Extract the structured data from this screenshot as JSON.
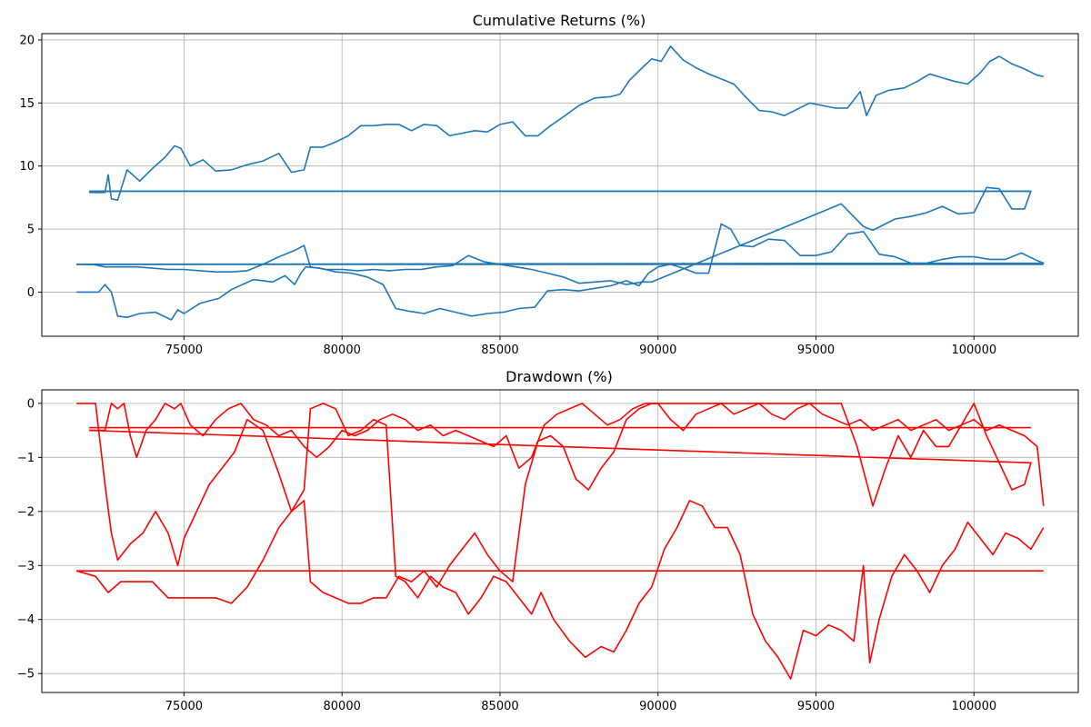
{
  "chart_data": [
    {
      "type": "line",
      "title": "Cumulative Returns (%)",
      "xlabel": "",
      "ylabel": "",
      "xlim": [
        70500,
        103300
      ],
      "ylim": [
        -3.5,
        20.5
      ],
      "xticks": [
        75000,
        80000,
        85000,
        90000,
        95000,
        100000
      ],
      "xtick_labels": [
        "75000",
        "80000",
        "85000",
        "90000",
        "95000",
        "100000"
      ],
      "yticks": [
        0,
        5,
        10,
        15,
        20
      ],
      "ytick_labels": [
        "0",
        "5",
        "10",
        "15",
        "20"
      ],
      "grid": true,
      "color": "#1f77b4",
      "series": [
        {
          "x": [
            71600,
            72300,
            72500,
            72700,
            72900,
            73200,
            73600,
            74100,
            74600,
            74800,
            75000,
            75500,
            76100,
            76500,
            77200,
            77800,
            78200,
            78500,
            78700,
            78850,
            79300,
            79800,
            80300,
            80800,
            81300,
            81700,
            82100,
            82600,
            83100,
            83600,
            84100,
            84600,
            85100,
            85600,
            86100,
            86500,
            87000,
            87500,
            88000,
            88500,
            89000,
            89400,
            89700,
            90000,
            90400,
            90800,
            91200,
            91600,
            92000,
            92300,
            92600,
            93000,
            93500,
            94000,
            94500,
            95000,
            95500,
            96000,
            96500,
            97000,
            97500,
            98000,
            98500,
            99000,
            99500,
            100000,
            100500,
            101000,
            101500,
            102000,
            102200,
            71600
          ],
          "y": [
            0.0,
            0.0,
            0.6,
            0.0,
            -1.9,
            -2.0,
            -1.7,
            -1.6,
            -2.2,
            -1.4,
            -1.7,
            -0.9,
            -0.5,
            0.2,
            1.0,
            0.8,
            1.3,
            0.6,
            1.5,
            2.0,
            1.9,
            1.6,
            1.5,
            1.2,
            0.6,
            -1.3,
            -1.5,
            -1.7,
            -1.3,
            -1.6,
            -1.9,
            -1.7,
            -1.6,
            -1.3,
            -1.2,
            0.1,
            0.2,
            0.1,
            0.3,
            0.5,
            0.9,
            0.5,
            1.5,
            2.0,
            2.2,
            1.9,
            1.5,
            1.5,
            5.4,
            5.0,
            3.7,
            3.6,
            4.2,
            4.1,
            2.9,
            2.9,
            3.2,
            4.6,
            4.8,
            3.0,
            2.8,
            2.3,
            2.3,
            2.6,
            2.8,
            2.8,
            2.6,
            2.6,
            3.1,
            2.5,
            2.3,
            2.2
          ]
        },
        {
          "x": [
            71600,
            72100,
            72500,
            73000,
            73500,
            74000,
            74500,
            75000,
            75500,
            76000,
            76500,
            77000,
            77500,
            78000,
            78500,
            78800,
            79000,
            79500,
            80000,
            80500,
            81000,
            81500,
            82000,
            82500,
            83000,
            83500,
            84000,
            84500,
            85000,
            85500,
            86000,
            86500,
            87000,
            87500,
            88000,
            88500,
            89000,
            89500,
            89800,
            95800,
            96500,
            96800,
            97500,
            98000,
            98500,
            99000,
            99500,
            100000,
            100400,
            100800,
            101200,
            101600,
            101800,
            72000
          ],
          "y": [
            2.2,
            2.2,
            2.0,
            2.0,
            2.0,
            1.9,
            1.8,
            1.8,
            1.7,
            1.6,
            1.6,
            1.7,
            2.2,
            2.8,
            3.3,
            3.7,
            2.0,
            1.8,
            1.8,
            1.7,
            1.8,
            1.7,
            1.8,
            1.8,
            2.0,
            2.1,
            2.9,
            2.4,
            2.2,
            2.0,
            1.8,
            1.5,
            1.2,
            0.7,
            0.8,
            0.9,
            0.6,
            0.8,
            0.8,
            7.0,
            5.2,
            4.9,
            5.8,
            6.0,
            6.3,
            6.8,
            6.2,
            6.3,
            8.3,
            8.2,
            6.6,
            6.6,
            8.0,
            8.0
          ]
        },
        {
          "x": [
            72000,
            72500,
            72600,
            72700,
            72900,
            73200,
            73600,
            74000,
            74400,
            74700,
            74900,
            75200,
            75600,
            76000,
            76500,
            77000,
            77500,
            78000,
            78400,
            78800,
            79000,
            79400,
            79800,
            80200,
            80600,
            81000,
            81400,
            81800,
            82200,
            82600,
            83000,
            83400,
            83800,
            84200,
            84600,
            85000,
            85400,
            85800,
            86200,
            86600,
            87000,
            87500,
            88000,
            88500,
            88800,
            89100,
            89500,
            89800,
            90100,
            90400,
            90800,
            91200,
            91600,
            92000,
            92400,
            92800,
            93200,
            93600,
            94000,
            94400,
            94800,
            95200,
            95600,
            96000,
            96400,
            96600,
            96900,
            97300,
            97800,
            98200,
            98600,
            99000,
            99400,
            99800,
            100200,
            100500,
            100800,
            101200,
            101600,
            102000,
            102200
          ],
          "y": [
            7.9,
            7.9,
            9.3,
            7.4,
            7.3,
            9.7,
            8.8,
            9.8,
            10.7,
            11.6,
            11.4,
            10.0,
            10.5,
            9.6,
            9.7,
            10.1,
            10.4,
            11.0,
            9.5,
            9.7,
            11.5,
            11.5,
            11.9,
            12.4,
            13.2,
            13.2,
            13.3,
            13.3,
            12.8,
            13.3,
            13.2,
            12.4,
            12.6,
            12.8,
            12.7,
            13.3,
            13.5,
            12.4,
            12.4,
            13.2,
            13.9,
            14.8,
            15.4,
            15.5,
            15.7,
            16.8,
            17.8,
            18.5,
            18.3,
            19.5,
            18.4,
            17.8,
            17.3,
            16.9,
            16.5,
            15.4,
            14.4,
            14.3,
            14.0,
            14.5,
            15.0,
            14.8,
            14.6,
            14.6,
            15.9,
            14.0,
            15.6,
            16.0,
            16.2,
            16.7,
            17.3,
            17.0,
            16.7,
            16.5,
            17.4,
            18.3,
            18.7,
            18.1,
            17.7,
            17.2,
            17.1
          ]
        },
        {
          "x": [
            72000,
            101800
          ],
          "y": [
            8.0,
            8.0
          ]
        },
        {
          "x": [
            71600,
            102200
          ],
          "y": [
            2.2,
            2.2
          ]
        }
      ]
    },
    {
      "type": "line",
      "title": "Drawdown (%)",
      "xlabel": "",
      "ylabel": "",
      "xlim": [
        70500,
        103300
      ],
      "ylim": [
        -5.35,
        0.25
      ],
      "xticks": [
        75000,
        80000,
        85000,
        90000,
        95000,
        100000
      ],
      "xtick_labels": [
        "75000",
        "80000",
        "85000",
        "90000",
        "95000",
        "100000"
      ],
      "yticks": [
        0,
        -1,
        -2,
        -3,
        -4,
        -5
      ],
      "ytick_labels": [
        "0",
        "−1",
        "−2",
        "−3",
        "−4",
        "−5"
      ],
      "grid": true,
      "color": "#ff0000",
      "series": [
        {
          "x": [
            71600,
            72200,
            72500,
            72700,
            72900,
            73300,
            73700,
            74100,
            74500,
            74800,
            75000,
            75400,
            75800,
            76200,
            76600,
            77000,
            77500,
            78000,
            78400,
            78800,
            79000,
            79400,
            79800,
            80200,
            80600,
            81000,
            81400,
            81700,
            82000,
            82400,
            82800,
            83200,
            83600,
            84000,
            84400,
            84800,
            85200,
            85600,
            86000,
            86300,
            86700,
            87200,
            87700,
            88200,
            88600,
            89000,
            89400,
            89800,
            90200,
            90600,
            91000,
            91400,
            91800,
            92200,
            92600,
            93000,
            93400,
            93800,
            94200,
            94600,
            95000,
            95400,
            95800,
            96200,
            96500,
            96700,
            97000,
            97400,
            97800,
            98200,
            98600,
            99000,
            99400,
            99800,
            100200,
            100600,
            101000,
            101400,
            101800,
            102200
          ],
          "y": [
            0.0,
            0.0,
            -1.5,
            -2.4,
            -2.9,
            -2.6,
            -2.4,
            -2.0,
            -2.4,
            -3.0,
            -2.5,
            -2.0,
            -1.5,
            -1.2,
            -0.9,
            -0.3,
            -0.5,
            -1.3,
            -2.0,
            -1.6,
            -0.1,
            0.0,
            -0.1,
            -0.6,
            -0.5,
            -0.3,
            -0.4,
            -3.2,
            -3.3,
            -3.6,
            -3.2,
            -3.4,
            -3.5,
            -3.9,
            -3.6,
            -3.2,
            -3.3,
            -3.6,
            -3.9,
            -3.5,
            -4.0,
            -4.4,
            -4.7,
            -4.5,
            -4.6,
            -4.2,
            -3.7,
            -3.4,
            -2.7,
            -2.3,
            -1.8,
            -1.9,
            -2.3,
            -2.3,
            -2.8,
            -3.9,
            -4.4,
            -4.7,
            -5.1,
            -4.2,
            -4.3,
            -4.1,
            -4.2,
            -4.4,
            -3.0,
            -4.8,
            -4.0,
            -3.2,
            -2.8,
            -3.1,
            -3.5,
            -3.0,
            -2.7,
            -2.2,
            -2.5,
            -2.8,
            -2.4,
            -2.5,
            -2.7,
            -2.3
          ]
        },
        {
          "x": [
            71600,
            72200,
            72600,
            73000,
            73500,
            74000,
            74500,
            75000,
            75500,
            76000,
            76500,
            77000,
            77500,
            78000,
            78400,
            78800,
            79000,
            79400,
            79800,
            80200,
            80600,
            81000,
            81400,
            81800,
            82200,
            82600,
            83000,
            83400,
            83800,
            84200,
            84600,
            85000,
            85400,
            85800,
            86200,
            86600,
            87000,
            87400,
            87800,
            88200,
            88600,
            89000,
            89400,
            89800,
            95800,
            96300,
            96800,
            97200,
            97600,
            98000,
            98400,
            98800,
            99200,
            99600,
            100000,
            100400,
            100800,
            101200,
            101600,
            101800,
            72000
          ],
          "y": [
            -3.1,
            -3.2,
            -3.5,
            -3.3,
            -3.3,
            -3.3,
            -3.6,
            -3.6,
            -3.6,
            -3.6,
            -3.7,
            -3.4,
            -2.9,
            -2.3,
            -2.0,
            -1.8,
            -3.3,
            -3.5,
            -3.6,
            -3.7,
            -3.7,
            -3.6,
            -3.6,
            -3.2,
            -3.3,
            -3.1,
            -3.4,
            -3.0,
            -2.7,
            -2.4,
            -2.8,
            -3.1,
            -3.3,
            -1.5,
            -0.7,
            -0.6,
            -0.8,
            -1.4,
            -1.6,
            -1.2,
            -0.9,
            -0.3,
            -0.1,
            0.0,
            0.0,
            -0.8,
            -1.9,
            -1.2,
            -0.6,
            -1.0,
            -0.5,
            -0.8,
            -0.8,
            -0.4,
            0.0,
            -0.6,
            -1.1,
            -1.6,
            -1.5,
            -1.1,
            -0.5
          ]
        },
        {
          "x": [
            72000,
            72500,
            72700,
            72900,
            73100,
            73300,
            73500,
            73800,
            74100,
            74400,
            74700,
            74900,
            75200,
            75600,
            76000,
            76400,
            76800,
            77200,
            77600,
            78000,
            78400,
            78800,
            79200,
            79600,
            80000,
            80400,
            80800,
            81200,
            81600,
            82000,
            82400,
            82800,
            83200,
            83600,
            84000,
            84400,
            84800,
            85200,
            85600,
            86000,
            86400,
            86800,
            87200,
            87600,
            88000,
            88400,
            88800,
            89200,
            89600,
            90000,
            90400,
            90800,
            91200,
            91600,
            92000,
            92400,
            92800,
            93200,
            93600,
            94000,
            94400,
            94800,
            95200,
            95600,
            96000,
            96400,
            96800,
            97200,
            97600,
            98000,
            98400,
            98800,
            99200,
            99600,
            100000,
            100400,
            100800,
            101200,
            101600,
            102000,
            102200
          ],
          "y": [
            -0.5,
            -0.5,
            0.0,
            -0.1,
            0.0,
            -0.6,
            -1.0,
            -0.5,
            -0.3,
            0.0,
            -0.1,
            0.0,
            -0.4,
            -0.6,
            -0.3,
            -0.1,
            0.0,
            -0.3,
            -0.4,
            -0.6,
            -0.5,
            -0.8,
            -1.0,
            -0.8,
            -0.5,
            -0.6,
            -0.5,
            -0.3,
            -0.2,
            -0.3,
            -0.5,
            -0.4,
            -0.6,
            -0.5,
            -0.6,
            -0.7,
            -0.8,
            -0.6,
            -1.2,
            -1.0,
            -0.4,
            -0.2,
            -0.1,
            0.0,
            -0.2,
            -0.4,
            -0.3,
            -0.1,
            0.0,
            0.0,
            -0.3,
            -0.5,
            -0.2,
            -0.1,
            0.0,
            -0.2,
            -0.1,
            0.0,
            -0.2,
            -0.3,
            -0.1,
            0.0,
            -0.2,
            -0.3,
            -0.4,
            -0.3,
            -0.5,
            -0.4,
            -0.3,
            -0.5,
            -0.4,
            -0.3,
            -0.5,
            -0.4,
            -0.3,
            -0.5,
            -0.4,
            -0.5,
            -0.6,
            -0.8,
            -1.9
          ]
        },
        {
          "x": [
            72000,
            101800
          ],
          "y": [
            -0.45,
            -0.45
          ]
        },
        {
          "x": [
            71600,
            102200
          ],
          "y": [
            -3.1,
            -3.1
          ]
        }
      ]
    }
  ]
}
